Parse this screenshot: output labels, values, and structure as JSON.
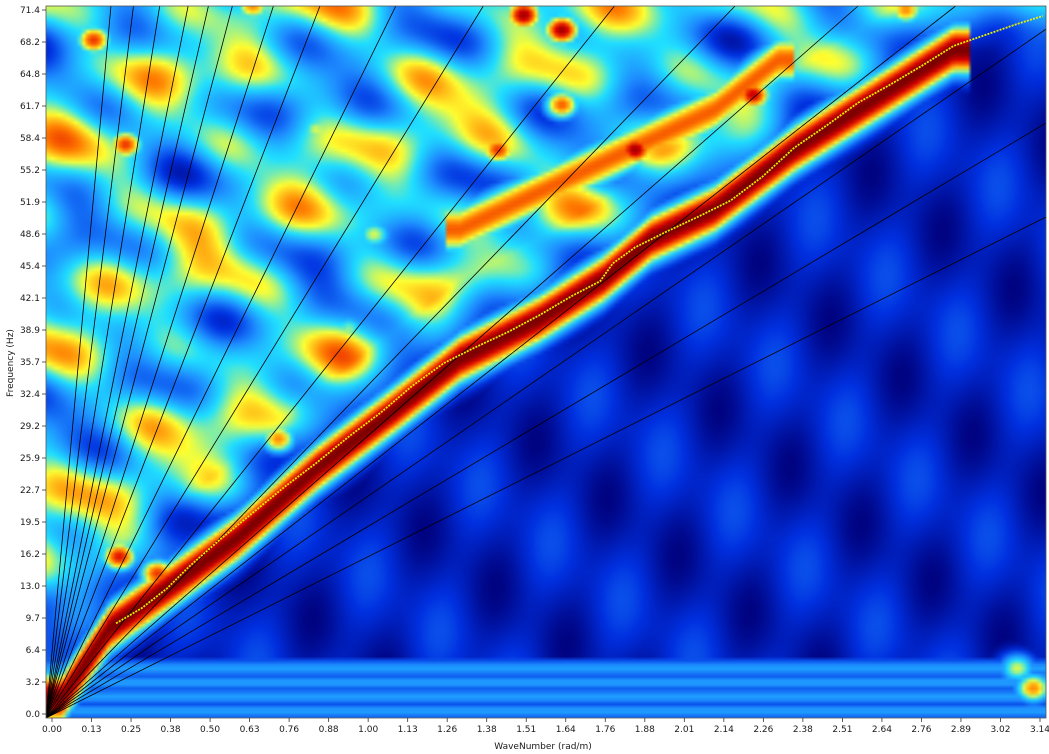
{
  "chart_data": {
    "type": "heatmap",
    "title": "",
    "xlabel": "WaveNumber (rad/m)",
    "ylabel": "Frequency (Hz)",
    "xlim": [
      0.0,
      3.14
    ],
    "ylim": [
      0.0,
      71.4
    ],
    "x_ticks": [
      "0.00",
      "0.13",
      "0.25",
      "0.38",
      "0.50",
      "0.63",
      "0.76",
      "0.88",
      "1.00",
      "1.13",
      "1.26",
      "1.38",
      "1.51",
      "1.64",
      "1.76",
      "1.88",
      "2.01",
      "2.14",
      "2.26",
      "2.38",
      "2.51",
      "2.64",
      "2.76",
      "2.89",
      "3.02",
      "3.14"
    ],
    "y_ticks": [
      "0.0",
      "3.2",
      "6.4",
      "9.7",
      "13.0",
      "16.2",
      "19.5",
      "22.7",
      "25.9",
      "29.2",
      "32.4",
      "35.7",
      "38.9",
      "42.1",
      "45.4",
      "48.6",
      "51.9",
      "55.2",
      "58.4",
      "61.7",
      "64.8",
      "68.2",
      "71.4"
    ],
    "colormap": [
      "#00007a",
      "#0030e0",
      "#1e8cff",
      "#20e0ff",
      "#ffff30",
      "#ff7a00",
      "#e00000",
      "#7a0000"
    ],
    "grid": false,
    "legend": "none",
    "velocity_lines": {
      "color": "#000000",
      "slopes_hz_per_rad_m": [
        16,
        19,
        22,
        25,
        28,
        33,
        40,
        52,
        65,
        83,
        100,
        122,
        140,
        160,
        200,
        260,
        350
      ]
    },
    "picked_dispersion_curve": {
      "color": "#e8f000",
      "x": [
        0.22,
        0.3,
        0.38,
        0.45,
        0.55,
        0.65,
        0.75,
        0.85,
        0.95,
        1.05,
        1.15,
        1.25,
        1.35,
        1.45,
        1.55,
        1.65,
        1.74,
        1.78,
        1.85,
        1.95,
        2.05,
        2.15,
        2.25,
        2.35,
        2.45,
        2.55,
        2.65,
        2.75,
        2.85,
        2.95,
        3.05,
        3.13
      ],
      "y": [
        9.5,
        11.0,
        13.0,
        15.2,
        18.0,
        20.6,
        23.2,
        25.6,
        28.2,
        30.6,
        33.3,
        35.6,
        37.2,
        38.7,
        40.4,
        42.3,
        43.8,
        45.6,
        47.2,
        48.8,
        50.3,
        51.9,
        54.3,
        57.2,
        59.4,
        61.7,
        63.5,
        65.4,
        67.4,
        68.5,
        69.6,
        70.4
      ]
    },
    "energy_ridges": [
      {
        "name": "fundamental",
        "x": [
          0.05,
          0.2,
          0.38,
          0.6,
          0.85,
          1.1,
          1.3,
          1.55,
          1.75,
          1.9,
          2.1,
          2.35,
          2.6,
          2.85
        ],
        "y": [
          2,
          9,
          13,
          18,
          25,
          31,
          36,
          40,
          44,
          48,
          51,
          57,
          62,
          67
        ],
        "amp": 1.0
      },
      {
        "name": "upper-branch",
        "x": [
          1.3,
          1.5,
          1.7,
          1.9,
          2.1,
          2.3
        ],
        "y": [
          49,
          52,
          55,
          58,
          61,
          66
        ],
        "amp": 0.75
      }
    ],
    "energy_blobs": [
      {
        "x": 0.23,
        "y": 16.2,
        "amp": 0.85
      },
      {
        "x": 0.35,
        "y": 14.5,
        "amp": 0.8
      },
      {
        "x": 0.25,
        "y": 57.5,
        "amp": 0.8
      },
      {
        "x": 0.15,
        "y": 68.0,
        "amp": 0.8
      },
      {
        "x": 0.73,
        "y": 28.0,
        "amp": 0.7
      },
      {
        "x": 1.5,
        "y": 70.5,
        "amp": 0.95
      },
      {
        "x": 1.62,
        "y": 69.0,
        "amp": 0.95
      },
      {
        "x": 1.62,
        "y": 61.5,
        "amp": 0.75
      },
      {
        "x": 1.85,
        "y": 57.0,
        "amp": 0.95
      },
      {
        "x": 2.22,
        "y": 62.5,
        "amp": 0.9
      },
      {
        "x": 1.42,
        "y": 57.0,
        "amp": 0.8
      },
      {
        "x": 0.65,
        "y": 71.4,
        "amp": 0.7
      },
      {
        "x": 2.7,
        "y": 71.0,
        "amp": 0.7
      },
      {
        "x": 1.03,
        "y": 48.5,
        "amp": 0.55
      },
      {
        "x": 0.85,
        "y": 59.0,
        "amp": 0.55
      },
      {
        "x": 0.95,
        "y": 39.0,
        "amp": 0.5
      },
      {
        "x": 3.1,
        "y": 3.0,
        "amp": 0.7
      },
      {
        "x": 3.05,
        "y": 5.0,
        "amp": 0.55
      }
    ]
  }
}
